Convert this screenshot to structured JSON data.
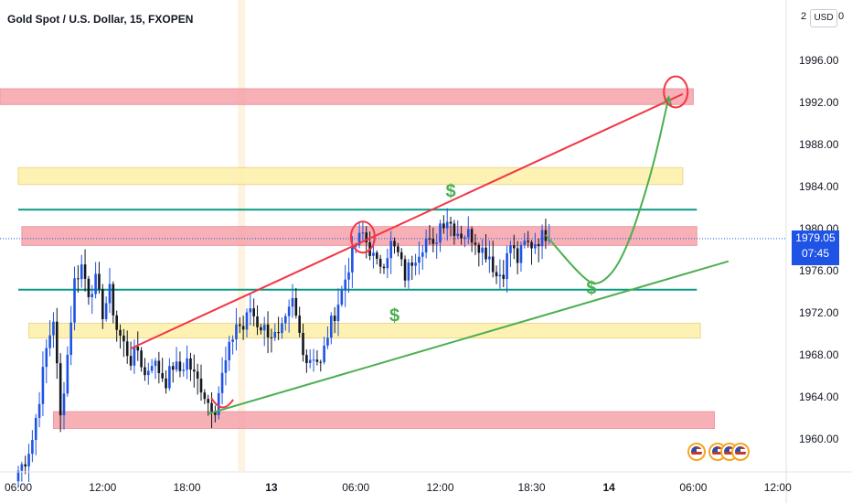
{
  "title": "Gold Spot / U.S. Dollar, 15, FXOPEN",
  "currency": "USD",
  "edge_tick_left": "2",
  "edge_tick_right": "0",
  "current_price": "1979.05",
  "countdown": "07:45",
  "colors": {
    "bull": "#1e53e5",
    "bear": "#131722",
    "resistance_zone": "#f5a3aa",
    "support_zone": "#fdf0a8",
    "level_line": "#089981",
    "trend_upper": "#f23645",
    "trend_lower": "#4caf50",
    "projection": "#4caf50",
    "marker": "#f23645"
  },
  "chart_data": {
    "type": "candlestick",
    "symbol": "Gold Spot / U.S. Dollar",
    "interval": "15",
    "source": "FXOPEN",
    "y_ticks": [
      1996.0,
      1992.0,
      1988.0,
      1984.0,
      1980.0,
      1976.0,
      1972.0,
      1968.0,
      1964.0,
      1960.0
    ],
    "y_tick_labels": [
      "1996.00",
      "1992.00",
      "1988.00",
      "1984.00",
      "1980.00",
      "1976.00",
      "1972.00",
      "1968.00",
      "1964.00",
      "1960.00"
    ],
    "x_tick_labels": [
      {
        "label": "06:00",
        "bar": 0
      },
      {
        "label": "12:00",
        "bar": 24
      },
      {
        "label": "18:00",
        "bar": 48
      },
      {
        "label": "13",
        "bar": 72
      },
      {
        "label": "06:00",
        "bar": 96
      },
      {
        "label": "12:00",
        "bar": 120
      },
      {
        "label": "18:30",
        "bar": 146
      },
      {
        "label": "14",
        "bar": 168
      },
      {
        "label": "06:00",
        "bar": 192
      },
      {
        "label": "12:00",
        "bar": 216
      }
    ],
    "close_path": [
      [
        0,
        1957.0
      ],
      [
        2,
        1958.0
      ],
      [
        4,
        1960.0
      ],
      [
        6,
        1964.0
      ],
      [
        8,
        1968.5
      ],
      [
        10,
        1971.5
      ],
      [
        12,
        1962.0
      ],
      [
        14,
        1968.0
      ],
      [
        16,
        1975.0
      ],
      [
        18,
        1976.5
      ],
      [
        20,
        1974.0
      ],
      [
        22,
        1975.0
      ],
      [
        24,
        1972.0
      ],
      [
        26,
        1974.0
      ],
      [
        28,
        1970.5
      ],
      [
        30,
        1969.0
      ],
      [
        32,
        1967.5
      ],
      [
        34,
        1968.5
      ],
      [
        36,
        1966.0
      ],
      [
        38,
        1967.5
      ],
      [
        40,
        1966.5
      ],
      [
        42,
        1965.5
      ],
      [
        44,
        1967.0
      ],
      [
        46,
        1966.5
      ],
      [
        48,
        1967.5
      ],
      [
        50,
        1966.0
      ],
      [
        52,
        1965.0
      ],
      [
        54,
        1963.5
      ],
      [
        56,
        1963.0
      ],
      [
        58,
        1966.0
      ],
      [
        60,
        1968.5
      ],
      [
        62,
        1971.0
      ],
      [
        64,
        1970.5
      ],
      [
        66,
        1972.5
      ],
      [
        68,
        1971.0
      ],
      [
        70,
        1970.5
      ],
      [
        72,
        1970.0
      ],
      [
        74,
        1969.5
      ],
      [
        76,
        1971.0
      ],
      [
        78,
        1973.0
      ],
      [
        80,
        1970.0
      ],
      [
        82,
        1967.5
      ],
      [
        84,
        1968.0
      ],
      [
        86,
        1967.0
      ],
      [
        88,
        1970.0
      ],
      [
        90,
        1972.0
      ],
      [
        92,
        1974.0
      ],
      [
        94,
        1976.5
      ],
      [
        96,
        1978.5
      ],
      [
        98,
        1979.5
      ],
      [
        100,
        1978.0
      ],
      [
        102,
        1976.5
      ],
      [
        104,
        1977.0
      ],
      [
        106,
        1978.5
      ],
      [
        108,
        1977.5
      ],
      [
        110,
        1975.5
      ],
      [
        112,
        1977.0
      ],
      [
        114,
        1978.0
      ],
      [
        116,
        1979.0
      ],
      [
        118,
        1978.0
      ],
      [
        120,
        1980.5
      ],
      [
        122,
        1981.0
      ],
      [
        124,
        1980.0
      ],
      [
        126,
        1979.5
      ],
      [
        128,
        1979.5
      ],
      [
        130,
        1979.0
      ],
      [
        132,
        1978.0
      ],
      [
        134,
        1977.5
      ],
      [
        136,
        1975.5
      ],
      [
        138,
        1976.0
      ],
      [
        140,
        1978.5
      ],
      [
        142,
        1977.0
      ],
      [
        144,
        1978.5
      ],
      [
        146,
        1978.5
      ],
      [
        148,
        1979.0
      ],
      [
        150,
        1979.5
      ],
      [
        151,
        1979.05
      ]
    ],
    "zones": [
      {
        "kind": "resistance",
        "top": 1993.3,
        "bottom": 1991.8,
        "from_bar": -24,
        "to_bar": 192
      },
      {
        "kind": "support",
        "top": 1985.8,
        "bottom": 1984.2,
        "from_bar": 0,
        "to_bar": 189
      },
      {
        "kind": "resistance",
        "top": 1980.2,
        "bottom": 1978.4,
        "from_bar": 1,
        "to_bar": 193
      },
      {
        "kind": "support",
        "top": 1971.0,
        "bottom": 1969.6,
        "from_bar": 3,
        "to_bar": 194
      },
      {
        "kind": "resistance",
        "top": 1962.6,
        "bottom": 1961.0,
        "from_bar": 10,
        "to_bar": 198
      }
    ],
    "levels": [
      {
        "price": 1981.8,
        "from_bar": 0,
        "to_bar": 193
      },
      {
        "price": 1974.2,
        "from_bar": 0,
        "to_bar": 193
      }
    ],
    "trendlines": [
      {
        "kind": "upper",
        "from": [
          32,
          1968.6
        ],
        "to": [
          189,
          1992.8
        ]
      },
      {
        "kind": "lower",
        "from": [
          54,
          1962.4
        ],
        "to": [
          202,
          1976.9
        ]
      }
    ],
    "projection": [
      [
        150,
        1979.4
      ],
      [
        160,
        1975.5
      ],
      [
        165,
        1974.4
      ],
      [
        172,
        1977.0
      ],
      [
        180,
        1985.0
      ],
      [
        185,
        1992.5
      ]
    ],
    "markers": [
      {
        "kind": "circle",
        "bar": 98,
        "price": 1979.2
      },
      {
        "kind": "circle",
        "bar": 187,
        "price": 1993.0
      },
      {
        "kind": "arc",
        "bar": 58,
        "price": 1963.4
      },
      {
        "kind": "dollar",
        "label": "$",
        "bar": 123,
        "price": 1983.6
      },
      {
        "kind": "dollar",
        "label": "$",
        "bar": 107,
        "price": 1971.8
      },
      {
        "kind": "dollar",
        "label": "$",
        "bar": 163,
        "price": 1974.4
      }
    ],
    "current_price": 1979.05
  }
}
